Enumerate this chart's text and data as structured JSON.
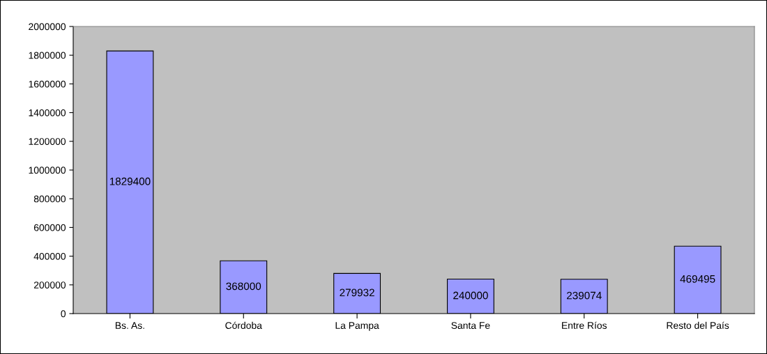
{
  "chart_data": {
    "type": "bar",
    "categories": [
      "Bs. As.",
      "Córdoba",
      "La Pampa",
      "Santa Fe",
      "Entre Ríos",
      "Resto del País"
    ],
    "values": [
      1829400,
      368000,
      279932,
      240000,
      239074,
      469495
    ],
    "color": "#9999ff",
    "ylim": [
      0,
      2000000
    ],
    "yticks": [
      0,
      200000,
      400000,
      600000,
      800000,
      1000000,
      1200000,
      1400000,
      1600000,
      1800000,
      2000000
    ],
    "grid": false,
    "data_labels": true
  }
}
